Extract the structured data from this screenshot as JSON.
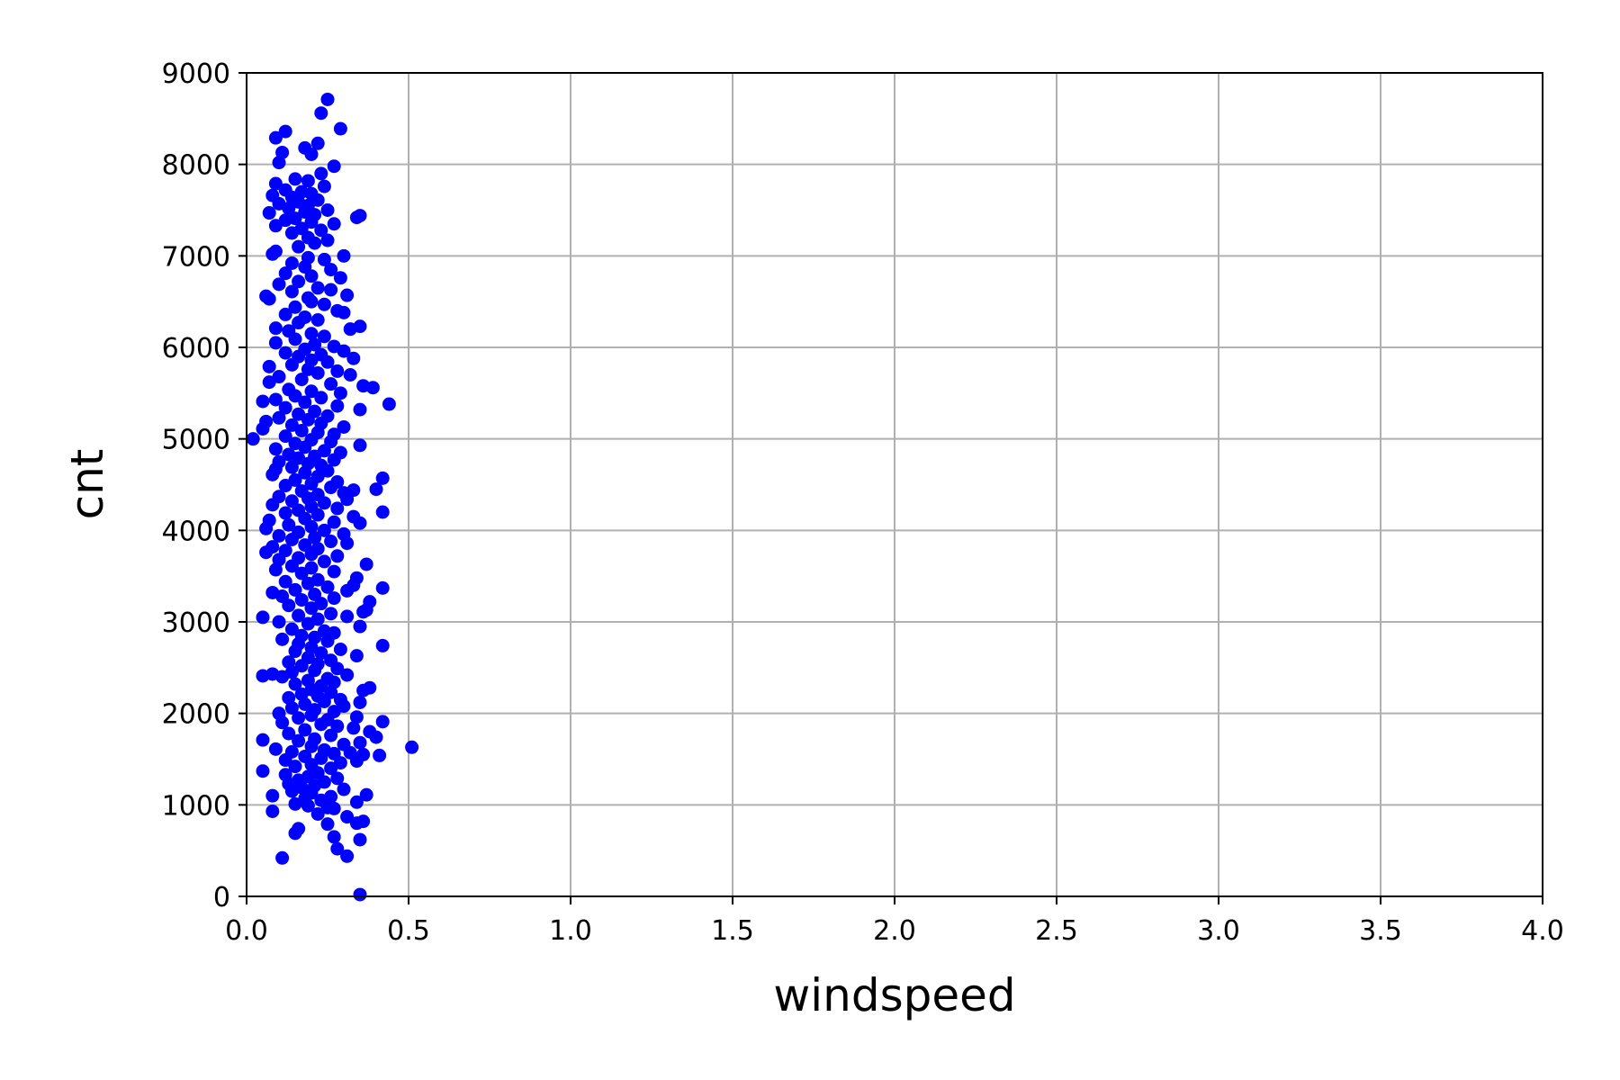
{
  "chart_data": {
    "type": "scatter",
    "title": "",
    "xlabel": "windspeed",
    "ylabel": "cnt",
    "xlim": [
      0,
      4
    ],
    "ylim": [
      0,
      9000
    ],
    "x_ticks": [
      "0.0",
      "0.5",
      "1.0",
      "1.5",
      "2.0",
      "2.5",
      "3.0",
      "3.5",
      "4.0"
    ],
    "y_ticks": [
      "0",
      "1000",
      "2000",
      "3000",
      "4000",
      "5000",
      "6000",
      "7000",
      "8000",
      "9000"
    ],
    "grid": true,
    "marker_color": "#0000ff",
    "points": [
      [
        0.25,
        8710
      ],
      [
        0.23,
        8560
      ],
      [
        0.29,
        8390
      ],
      [
        0.12,
        8360
      ],
      [
        0.09,
        8290
      ],
      [
        0.22,
        8230
      ],
      [
        0.18,
        8180
      ],
      [
        0.11,
        8130
      ],
      [
        0.2,
        8110
      ],
      [
        0.1,
        8020
      ],
      [
        0.27,
        7980
      ],
      [
        0.23,
        7900
      ],
      [
        0.15,
        7840
      ],
      [
        0.19,
        7820
      ],
      [
        0.09,
        7790
      ],
      [
        0.24,
        7760
      ],
      [
        0.12,
        7720
      ],
      [
        0.17,
        7700
      ],
      [
        0.2,
        7680
      ],
      [
        0.08,
        7660
      ],
      [
        0.14,
        7640
      ],
      [
        0.22,
        7610
      ],
      [
        0.16,
        7590
      ],
      [
        0.1,
        7570
      ],
      [
        0.19,
        7550
      ],
      [
        0.13,
        7520
      ],
      [
        0.25,
        7500
      ],
      [
        0.18,
        7480
      ],
      [
        0.07,
        7470
      ],
      [
        0.21,
        7450
      ],
      [
        0.35,
        7440
      ],
      [
        0.34,
        7420
      ],
      [
        0.15,
        7410
      ],
      [
        0.12,
        7390
      ],
      [
        0.2,
        7370
      ],
      [
        0.27,
        7350
      ],
      [
        0.09,
        7330
      ],
      [
        0.17,
        7300
      ],
      [
        0.23,
        7280
      ],
      [
        0.14,
        7250
      ],
      [
        0.19,
        7200
      ],
      [
        0.25,
        7170
      ],
      [
        0.21,
        7140
      ],
      [
        0.16,
        7100
      ],
      [
        0.09,
        7050
      ],
      [
        0.08,
        7020
      ],
      [
        0.3,
        7000
      ],
      [
        0.19,
        6980
      ],
      [
        0.24,
        6960
      ],
      [
        0.14,
        6920
      ],
      [
        0.18,
        6880
      ],
      [
        0.26,
        6850
      ],
      [
        0.12,
        6810
      ],
      [
        0.2,
        6780
      ],
      [
        0.29,
        6760
      ],
      [
        0.16,
        6720
      ],
      [
        0.1,
        6690
      ],
      [
        0.22,
        6650
      ],
      [
        0.26,
        6630
      ],
      [
        0.14,
        6610
      ],
      [
        0.31,
        6570
      ],
      [
        0.06,
        6560
      ],
      [
        0.19,
        6540
      ],
      [
        0.07,
        6530
      ],
      [
        0.2,
        6500
      ],
      [
        0.24,
        6470
      ],
      [
        0.15,
        6440
      ],
      [
        0.28,
        6400
      ],
      [
        0.3,
        6380
      ],
      [
        0.12,
        6360
      ],
      [
        0.18,
        6330
      ],
      [
        0.22,
        6300
      ],
      [
        0.16,
        6270
      ],
      [
        0.35,
        6230
      ],
      [
        0.09,
        6210
      ],
      [
        0.32,
        6200
      ],
      [
        0.13,
        6180
      ],
      [
        0.2,
        6150
      ],
      [
        0.24,
        6120
      ],
      [
        0.15,
        6090
      ],
      [
        0.09,
        6050
      ],
      [
        0.21,
        6030
      ],
      [
        0.27,
        6010
      ],
      [
        0.18,
        5980
      ],
      [
        0.3,
        5960
      ],
      [
        0.12,
        5940
      ],
      [
        0.23,
        5920
      ],
      [
        0.16,
        5900
      ],
      [
        0.33,
        5880
      ],
      [
        0.2,
        5860
      ],
      [
        0.25,
        5840
      ],
      [
        0.14,
        5810
      ],
      [
        0.07,
        5790
      ],
      [
        0.19,
        5760
      ],
      [
        0.28,
        5740
      ],
      [
        0.22,
        5720
      ],
      [
        0.32,
        5700
      ],
      [
        0.1,
        5680
      ],
      [
        0.17,
        5650
      ],
      [
        0.07,
        5620
      ],
      [
        0.26,
        5600
      ],
      [
        0.36,
        5580
      ],
      [
        0.39,
        5560
      ],
      [
        0.13,
        5540
      ],
      [
        0.2,
        5520
      ],
      [
        0.29,
        5500
      ],
      [
        0.15,
        5470
      ],
      [
        0.23,
        5450
      ],
      [
        0.09,
        5430
      ],
      [
        0.05,
        5410
      ],
      [
        0.18,
        5400
      ],
      [
        0.44,
        5380
      ],
      [
        0.28,
        5360
      ],
      [
        0.12,
        5340
      ],
      [
        0.35,
        5320
      ],
      [
        0.21,
        5300
      ],
      [
        0.16,
        5270
      ],
      [
        0.25,
        5250
      ],
      [
        0.1,
        5230
      ],
      [
        0.19,
        5210
      ],
      [
        0.06,
        5190
      ],
      [
        0.23,
        5170
      ],
      [
        0.14,
        5150
      ],
      [
        0.3,
        5130
      ],
      [
        0.05,
        5110
      ],
      [
        0.17,
        5090
      ],
      [
        0.22,
        5070
      ],
      [
        0.27,
        5050
      ],
      [
        0.12,
        5030
      ],
      [
        0.02,
        5000
      ],
      [
        0.2,
        4990
      ],
      [
        0.26,
        4970
      ],
      [
        0.15,
        4950
      ],
      [
        0.35,
        4930
      ],
      [
        0.18,
        4910
      ],
      [
        0.09,
        4890
      ],
      [
        0.24,
        4870
      ],
      [
        0.29,
        4850
      ],
      [
        0.13,
        4830
      ],
      [
        0.21,
        4810
      ],
      [
        0.16,
        4790
      ],
      [
        0.27,
        4770
      ],
      [
        0.1,
        4750
      ],
      [
        0.19,
        4730
      ],
      [
        0.23,
        4710
      ],
      [
        0.14,
        4690
      ],
      [
        0.09,
        4670
      ],
      [
        0.25,
        4650
      ],
      [
        0.18,
        4630
      ],
      [
        0.08,
        4610
      ],
      [
        0.22,
        4590
      ],
      [
        0.42,
        4570
      ],
      [
        0.15,
        4550
      ],
      [
        0.28,
        4530
      ],
      [
        0.2,
        4510
      ],
      [
        0.12,
        4490
      ],
      [
        0.26,
        4470
      ],
      [
        0.4,
        4450
      ],
      [
        0.33,
        4440
      ],
      [
        0.17,
        4430
      ],
      [
        0.3,
        4410
      ],
      [
        0.22,
        4390
      ],
      [
        0.1,
        4370
      ],
      [
        0.19,
        4350
      ],
      [
        0.31,
        4340
      ],
      [
        0.14,
        4320
      ],
      [
        0.24,
        4300
      ],
      [
        0.08,
        4280
      ],
      [
        0.2,
        4260
      ],
      [
        0.28,
        4240
      ],
      [
        0.16,
        4220
      ],
      [
        0.42,
        4200
      ],
      [
        0.12,
        4190
      ],
      [
        0.22,
        4170
      ],
      [
        0.33,
        4150
      ],
      [
        0.18,
        4130
      ],
      [
        0.07,
        4110
      ],
      [
        0.27,
        4090
      ],
      [
        0.35,
        4080
      ],
      [
        0.13,
        4060
      ],
      [
        0.2,
        4040
      ],
      [
        0.06,
        4020
      ],
      [
        0.24,
        4000
      ],
      [
        0.16,
        3980
      ],
      [
        0.3,
        3960
      ],
      [
        0.1,
        3940
      ],
      [
        0.21,
        3920
      ],
      [
        0.14,
        3900
      ],
      [
        0.26,
        3880
      ],
      [
        0.31,
        3860
      ],
      [
        0.18,
        3840
      ],
      [
        0.08,
        3820
      ],
      [
        0.22,
        3800
      ],
      [
        0.12,
        3780
      ],
      [
        0.06,
        3760
      ],
      [
        0.2,
        3740
      ],
      [
        0.28,
        3720
      ],
      [
        0.16,
        3700
      ],
      [
        0.1,
        3680
      ],
      [
        0.24,
        3660
      ],
      [
        0.37,
        3630
      ],
      [
        0.14,
        3610
      ],
      [
        0.2,
        3590
      ],
      [
        0.09,
        3570
      ],
      [
        0.27,
        3550
      ],
      [
        0.17,
        3530
      ],
      [
        0.34,
        3480
      ],
      [
        0.22,
        3460
      ],
      [
        0.12,
        3440
      ],
      [
        0.19,
        3420
      ],
      [
        0.33,
        3400
      ],
      [
        0.25,
        3380
      ],
      [
        0.42,
        3370
      ],
      [
        0.15,
        3350
      ],
      [
        0.31,
        3340
      ],
      [
        0.08,
        3320
      ],
      [
        0.21,
        3300
      ],
      [
        0.11,
        3280
      ],
      [
        0.27,
        3260
      ],
      [
        0.17,
        3240
      ],
      [
        0.38,
        3220
      ],
      [
        0.23,
        3200
      ],
      [
        0.13,
        3180
      ],
      [
        0.2,
        3150
      ],
      [
        0.37,
        3130
      ],
      [
        0.36,
        3110
      ],
      [
        0.26,
        3090
      ],
      [
        0.16,
        3070
      ],
      [
        0.31,
        3060
      ],
      [
        0.05,
        3050
      ],
      [
        0.22,
        3030
      ],
      [
        0.1,
        3000
      ],
      [
        0.19,
        2980
      ],
      [
        0.35,
        2950
      ],
      [
        0.14,
        2920
      ],
      [
        0.24,
        2900
      ],
      [
        0.27,
        2880
      ],
      [
        0.17,
        2850
      ],
      [
        0.21,
        2830
      ],
      [
        0.11,
        2810
      ],
      [
        0.25,
        2790
      ],
      [
        0.16,
        2760
      ],
      [
        0.42,
        2740
      ],
      [
        0.2,
        2720
      ],
      [
        0.29,
        2700
      ],
      [
        0.15,
        2680
      ],
      [
        0.23,
        2660
      ],
      [
        0.34,
        2630
      ],
      [
        0.19,
        2610
      ],
      [
        0.26,
        2580
      ],
      [
        0.13,
        2560
      ],
      [
        0.22,
        2540
      ],
      [
        0.17,
        2520
      ],
      [
        0.28,
        2490
      ],
      [
        0.21,
        2470
      ],
      [
        0.14,
        2450
      ],
      [
        0.08,
        2430
      ],
      [
        0.31,
        2420
      ],
      [
        0.05,
        2410
      ],
      [
        0.11,
        2400
      ],
      [
        0.25,
        2380
      ],
      [
        0.19,
        2360
      ],
      [
        0.27,
        2340
      ],
      [
        0.15,
        2320
      ],
      [
        0.23,
        2300
      ],
      [
        0.38,
        2280
      ],
      [
        0.2,
        2260
      ],
      [
        0.36,
        2250
      ],
      [
        0.26,
        2230
      ],
      [
        0.17,
        2210
      ],
      [
        0.22,
        2190
      ],
      [
        0.13,
        2170
      ],
      [
        0.29,
        2150
      ],
      [
        0.24,
        2130
      ],
      [
        0.35,
        2120
      ],
      [
        0.18,
        2100
      ],
      [
        0.3,
        2080
      ],
      [
        0.14,
        2060
      ],
      [
        0.21,
        2040
      ],
      [
        0.27,
        2020
      ],
      [
        0.1,
        2000
      ],
      [
        0.2,
        1980
      ],
      [
        0.34,
        1960
      ],
      [
        0.16,
        1950
      ],
      [
        0.25,
        1930
      ],
      [
        0.42,
        1910
      ],
      [
        0.11,
        1900
      ],
      [
        0.23,
        1880
      ],
      [
        0.28,
        1860
      ],
      [
        0.33,
        1840
      ],
      [
        0.18,
        1820
      ],
      [
        0.38,
        1800
      ],
      [
        0.13,
        1780
      ],
      [
        0.26,
        1760
      ],
      [
        0.4,
        1740
      ],
      [
        0.21,
        1720
      ],
      [
        0.05,
        1710
      ],
      [
        0.16,
        1700
      ],
      [
        0.35,
        1680
      ],
      [
        0.3,
        1660
      ],
      [
        0.2,
        1640
      ],
      [
        0.51,
        1630
      ],
      [
        0.09,
        1610
      ],
      [
        0.24,
        1600
      ],
      [
        0.14,
        1580
      ],
      [
        0.32,
        1570
      ],
      [
        0.27,
        1560
      ],
      [
        0.36,
        1550
      ],
      [
        0.41,
        1540
      ],
      [
        0.18,
        1530
      ],
      [
        0.23,
        1510
      ],
      [
        0.12,
        1490
      ],
      [
        0.34,
        1480
      ],
      [
        0.29,
        1460
      ],
      [
        0.2,
        1440
      ],
      [
        0.15,
        1420
      ],
      [
        0.26,
        1400
      ],
      [
        0.05,
        1370
      ],
      [
        0.22,
        1350
      ],
      [
        0.12,
        1330
      ],
      [
        0.19,
        1310
      ],
      [
        0.28,
        1290
      ],
      [
        0.16,
        1270
      ],
      [
        0.24,
        1250
      ],
      [
        0.13,
        1230
      ],
      [
        0.21,
        1210
      ],
      [
        0.17,
        1190
      ],
      [
        0.3,
        1170
      ],
      [
        0.14,
        1150
      ],
      [
        0.2,
        1130
      ],
      [
        0.37,
        1110
      ],
      [
        0.08,
        1100
      ],
      [
        0.26,
        1090
      ],
      [
        0.18,
        1070
      ],
      [
        0.23,
        1050
      ],
      [
        0.34,
        1030
      ],
      [
        0.15,
        1010
      ],
      [
        0.19,
        990
      ],
      [
        0.25,
        970
      ],
      [
        0.27,
        960
      ],
      [
        0.08,
        930
      ],
      [
        0.22,
        900
      ],
      [
        0.31,
        870
      ],
      [
        0.36,
        820
      ],
      [
        0.34,
        800
      ],
      [
        0.25,
        790
      ],
      [
        0.16,
        740
      ],
      [
        0.15,
        690
      ],
      [
        0.27,
        650
      ],
      [
        0.35,
        620
      ],
      [
        0.28,
        520
      ],
      [
        0.31,
        440
      ],
      [
        0.11,
        420
      ],
      [
        0.35,
        20
      ]
    ]
  }
}
